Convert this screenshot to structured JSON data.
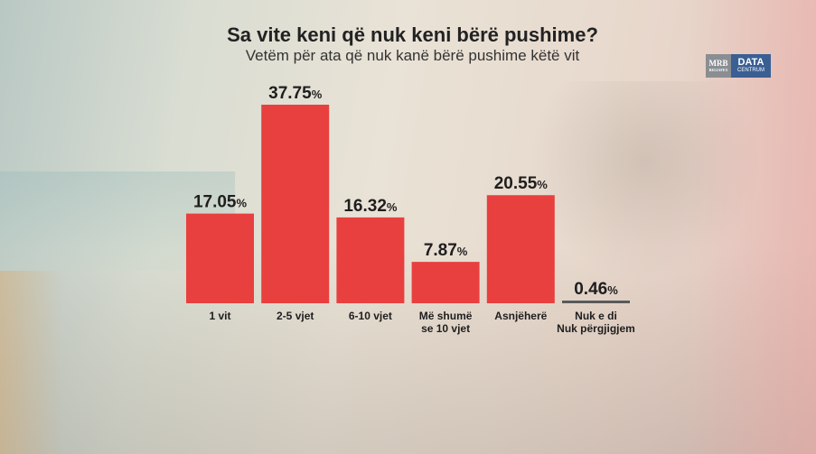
{
  "title": "Sa vite keni që nuk keni bërë pushime?",
  "subtitle": "Vetëm për ata që nuk kanë bërë pushime këtë vit",
  "logo": {
    "left_text": "MRB",
    "left_small": "RELIAFEX",
    "right_text": "DATA",
    "right_small": "CENTRUM"
  },
  "colors": {
    "bar": "#e8403f",
    "bar_small": "#5a5a5a",
    "text": "#1e1e1e"
  },
  "chart_data": {
    "type": "bar",
    "title": "Sa vite keni që nuk keni bërë pushime?",
    "subtitle": "Vetëm për ata që nuk kanë bërë pushime këtë vit",
    "categories": [
      [
        "1 vit"
      ],
      [
        "2-5 vjet"
      ],
      [
        "6-10 vjet"
      ],
      [
        "Më shumë",
        "se 10 vjet"
      ],
      [
        "Asnjëherë"
      ],
      [
        "Nuk e di",
        "Nuk përgjigjem"
      ]
    ],
    "values": [
      17.05,
      37.75,
      16.32,
      7.87,
      20.55,
      0.46
    ],
    "value_labels": [
      "17.05",
      "37.75",
      "16.32",
      "7.87",
      "20.55",
      "0.46"
    ],
    "unit": "%",
    "ylim": [
      0,
      37.75
    ],
    "grid": false,
    "legend": "none"
  }
}
